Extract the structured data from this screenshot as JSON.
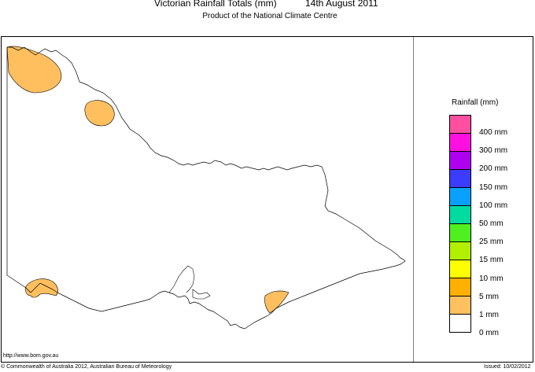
{
  "header": {
    "title": "Victorian Rainfall Totals (mm)",
    "date": "14th August 2011",
    "subtitle": "Product of the National Climate Centre"
  },
  "legend": {
    "title": "Rainfall (mm)",
    "labels": [
      "400 mm",
      "300 mm",
      "200 mm",
      "150 mm",
      "100 mm",
      "50 mm",
      "25 mm",
      "15 mm",
      "10 mm",
      "5 mm",
      "1 mm",
      "0 mm"
    ],
    "colors": [
      "#ff4fa0",
      "#ff10e0",
      "#b000f0",
      "#3c3cff",
      "#0aa0ff",
      "#00dca0",
      "#50f020",
      "#b0f000",
      "#ffff00",
      "#ffb000",
      "#ffc060",
      "#ffffff"
    ]
  },
  "map": {
    "rain_color": "#ffbf5f",
    "rain_areas_mm": [
      "1 mm",
      "1 mm",
      "1 mm",
      "1 mm"
    ]
  },
  "footer": {
    "url": "http://www.bom.gov.au",
    "copyright": "© Commonwealth of Australia 2012, Australian Bureau of Meteorology",
    "issued": "Issued: 10/02/2012"
  }
}
